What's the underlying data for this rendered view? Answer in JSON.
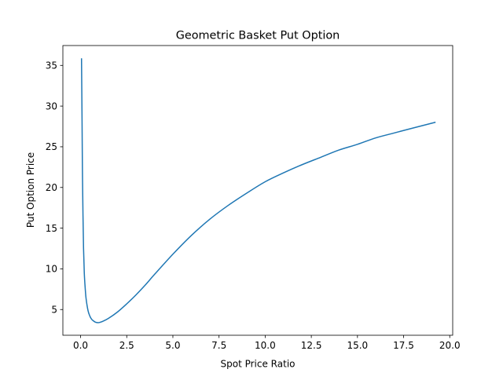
{
  "chart_data": {
    "type": "line",
    "title": "Geometric Basket Put Option",
    "xlabel": "Spot Price Ratio",
    "ylabel": "Put Option Price",
    "xlim": [
      -0.96,
      20.16
    ],
    "ylim": [
      1.84,
      37.44
    ],
    "xticks": [
      0.0,
      2.5,
      5.0,
      7.5,
      10.0,
      12.5,
      15.0,
      17.5,
      20.0
    ],
    "xtick_labels": [
      "0.0",
      "2.5",
      "5.0",
      "7.5",
      "10.0",
      "12.5",
      "15.0",
      "17.5",
      "20.0"
    ],
    "yticks": [
      5,
      10,
      15,
      20,
      25,
      30,
      35
    ],
    "ytick_labels": [
      "5",
      "10",
      "15",
      "20",
      "25",
      "30",
      "35"
    ],
    "grid": false,
    "legend": "none",
    "series": [
      {
        "color": "#1f77b4",
        "x": [
          0.05,
          0.08,
          0.1,
          0.13,
          0.16,
          0.2,
          0.25,
          0.3,
          0.4,
          0.5,
          0.6,
          0.7,
          0.8,
          0.9,
          1.0,
          1.2,
          1.5,
          2.0,
          2.5,
          3.0,
          3.5,
          4.0,
          5.0,
          6.0,
          7.0,
          8.0,
          9.0,
          10.0,
          11.0,
          12.0,
          13.0,
          14.0,
          15.0,
          16.0,
          17.0,
          18.0,
          19.2
        ],
        "y": [
          35.8,
          28.0,
          22.0,
          16.5,
          12.5,
          9.5,
          7.6,
          6.3,
          4.9,
          4.2,
          3.8,
          3.6,
          3.45,
          3.4,
          3.4,
          3.55,
          3.9,
          4.7,
          5.7,
          6.8,
          8.0,
          9.3,
          11.8,
          14.1,
          16.1,
          17.8,
          19.3,
          20.7,
          21.8,
          22.8,
          23.7,
          24.6,
          25.3,
          26.1,
          26.7,
          27.3,
          28.0
        ]
      }
    ]
  }
}
